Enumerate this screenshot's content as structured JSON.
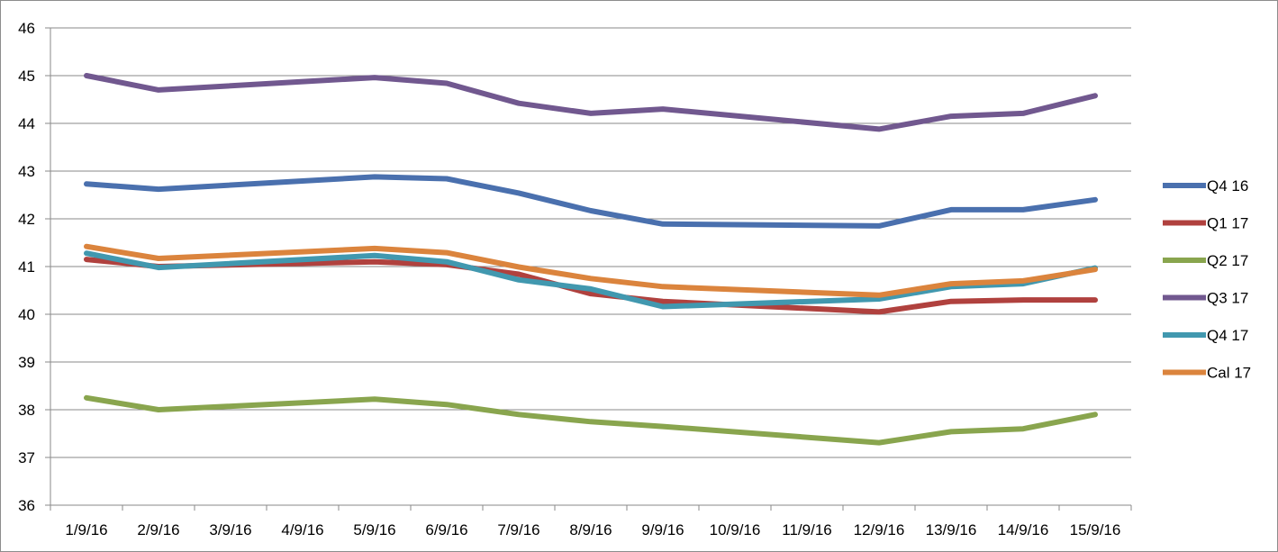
{
  "chart_data": {
    "type": "line",
    "title": "",
    "xlabel": "",
    "ylabel": "",
    "ylim": [
      36,
      46
    ],
    "yticks": [
      36,
      37,
      38,
      39,
      40,
      41,
      42,
      43,
      44,
      45,
      46
    ],
    "grid": "horizontal",
    "legend_position": "right",
    "categories": [
      "1/9/16",
      "2/9/16",
      "3/9/16",
      "4/9/16",
      "5/9/16",
      "6/9/16",
      "7/9/16",
      "8/9/16",
      "9/9/16",
      "10/9/16",
      "11/9/16",
      "12/9/16",
      "13/9/16",
      "14/9/16",
      "15/9/16"
    ],
    "series": [
      {
        "name": "Q4 16",
        "color": "#4A70AE",
        "points": [
          [
            0,
            42.73
          ],
          [
            1,
            42.62
          ],
          [
            4,
            42.88
          ],
          [
            5,
            42.84
          ],
          [
            6,
            42.54
          ],
          [
            7,
            42.17
          ],
          [
            8,
            41.89
          ],
          [
            11,
            41.85
          ],
          [
            12,
            42.19
          ],
          [
            13,
            42.19
          ],
          [
            14,
            42.4
          ]
        ]
      },
      {
        "name": "Q1 17",
        "color": "#B0413E",
        "points": [
          [
            0,
            41.15
          ],
          [
            1,
            41.0
          ],
          [
            4,
            41.1
          ],
          [
            5,
            41.04
          ],
          [
            6,
            40.84
          ],
          [
            7,
            40.43
          ],
          [
            8,
            40.27
          ],
          [
            11,
            40.05
          ],
          [
            12,
            40.27
          ],
          [
            13,
            40.3
          ],
          [
            14,
            40.3
          ]
        ]
      },
      {
        "name": "Q2 17",
        "color": "#89A54E",
        "points": [
          [
            0,
            38.25
          ],
          [
            1,
            38.0
          ],
          [
            4,
            38.22
          ],
          [
            5,
            38.11
          ],
          [
            6,
            37.9
          ],
          [
            7,
            37.75
          ],
          [
            8,
            37.65
          ],
          [
            11,
            37.31
          ],
          [
            12,
            37.54
          ],
          [
            13,
            37.6
          ],
          [
            14,
            37.9
          ]
        ]
      },
      {
        "name": "Q3 17",
        "color": "#71588F",
        "points": [
          [
            0,
            45.0
          ],
          [
            1,
            44.7
          ],
          [
            4,
            44.96
          ],
          [
            5,
            44.84
          ],
          [
            6,
            44.42
          ],
          [
            7,
            44.21
          ],
          [
            8,
            44.3
          ],
          [
            11,
            43.88
          ],
          [
            12,
            44.15
          ],
          [
            13,
            44.21
          ],
          [
            14,
            44.58
          ]
        ]
      },
      {
        "name": "Q4 17",
        "color": "#4198AF",
        "points": [
          [
            0,
            41.28
          ],
          [
            1,
            40.98
          ],
          [
            4,
            41.23
          ],
          [
            5,
            41.1
          ],
          [
            6,
            40.72
          ],
          [
            7,
            40.53
          ],
          [
            8,
            40.16
          ],
          [
            11,
            40.32
          ],
          [
            12,
            40.58
          ],
          [
            13,
            40.64
          ],
          [
            14,
            40.97
          ]
        ]
      },
      {
        "name": "Cal 17",
        "color": "#DB843D",
        "points": [
          [
            0,
            41.42
          ],
          [
            1,
            41.17
          ],
          [
            4,
            41.38
          ],
          [
            5,
            41.29
          ],
          [
            6,
            40.99
          ],
          [
            7,
            40.75
          ],
          [
            8,
            40.58
          ],
          [
            11,
            40.4
          ],
          [
            12,
            40.64
          ],
          [
            13,
            40.7
          ],
          [
            14,
            40.94
          ]
        ]
      }
    ]
  }
}
